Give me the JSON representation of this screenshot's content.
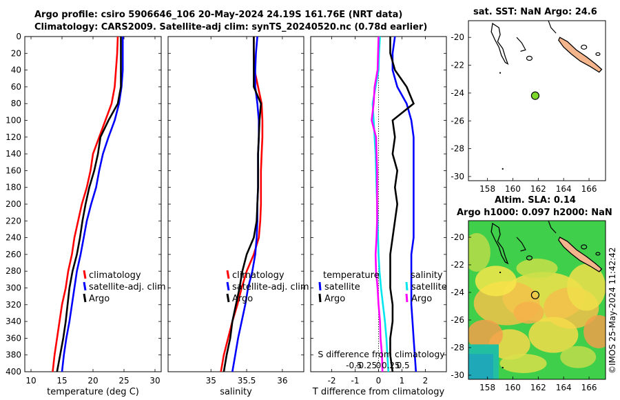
{
  "title": {
    "line1": "Argo profile: csiro 5906646_106 20-May-2024 24.19S 161.76E (NRT data)",
    "line2": "Climatology: CARS2009. Satellite-adj clim: synTS_20240520.nc (0.78d earlier)"
  },
  "footer": "©IMOS 25-May-2024 11:42:42",
  "colors": {
    "climatology": "#ff0000",
    "satellite": "#0000ff",
    "argo": "#000000",
    "t_sat": "#0000ff",
    "s_sat": "#00e5ee",
    "s_argo": "#ff00ff"
  },
  "chart_data": [
    {
      "type": "line",
      "xlabel": "temperature (deg C)",
      "ylabel": "",
      "xlim": [
        9,
        31
      ],
      "ylim": [
        400,
        0
      ],
      "xticks": [
        10,
        15,
        20,
        25,
        30
      ],
      "yticks": [
        0,
        20,
        40,
        60,
        80,
        100,
        120,
        140,
        160,
        180,
        200,
        220,
        240,
        260,
        280,
        300,
        320,
        340,
        360,
        380,
        400
      ],
      "legend": [
        "climatology",
        "satellite-adj. clim",
        "Argo"
      ],
      "series": [
        {
          "name": "climatology",
          "x": [
            24.0,
            23.9,
            23.7,
            23.5,
            23.0,
            22.0,
            21.0,
            20.0,
            19.6,
            19.0,
            18.2,
            17.6,
            17.0,
            16.6,
            16.0,
            15.6,
            15.0,
            14.6,
            14.2,
            13.8,
            13.5
          ],
          "y": [
            0,
            20,
            40,
            60,
            80,
            100,
            120,
            140,
            160,
            180,
            200,
            220,
            240,
            260,
            280,
            300,
            320,
            340,
            360,
            380,
            400
          ]
        },
        {
          "name": "satellite-adj. clim",
          "x": [
            24.8,
            24.8,
            24.8,
            24.6,
            24.2,
            23.5,
            22.5,
            21.6,
            21.0,
            20.5,
            19.7,
            19.0,
            18.5,
            18.0,
            17.4,
            17.0,
            16.6,
            16.2,
            15.7,
            15.3,
            15.0
          ],
          "y": [
            0,
            20,
            40,
            60,
            80,
            100,
            120,
            140,
            160,
            180,
            200,
            220,
            240,
            260,
            280,
            300,
            320,
            340,
            360,
            380,
            400
          ]
        },
        {
          "name": "Argo",
          "x": [
            24.5,
            24.5,
            24.5,
            24.5,
            24.0,
            22.5,
            21.2,
            20.8,
            20.2,
            19.4,
            18.8,
            18.3,
            17.9,
            17.4,
            16.7,
            16.2,
            15.9,
            15.6,
            15.2,
            14.7,
            14.2
          ],
          "y": [
            0,
            20,
            40,
            60,
            80,
            100,
            120,
            140,
            160,
            180,
            200,
            220,
            240,
            260,
            280,
            300,
            320,
            340,
            360,
            380,
            400
          ]
        }
      ]
    },
    {
      "type": "line",
      "xlabel": "salinity",
      "ylabel": "",
      "xlim": [
        34.4,
        36.3
      ],
      "ylim": [
        400,
        0
      ],
      "xticks": [
        35,
        35.5,
        36
      ],
      "legend": [
        "climatology",
        "satellite-adj. clim",
        "Argo"
      ],
      "series": [
        {
          "name": "climatology",
          "x": [
            35.6,
            35.6,
            35.61,
            35.66,
            35.71,
            35.72,
            35.72,
            35.71,
            35.7,
            35.7,
            35.7,
            35.69,
            35.67,
            35.6,
            35.5,
            35.43,
            35.37,
            35.3,
            35.24,
            35.18,
            35.14
          ],
          "y": [
            0,
            20,
            40,
            60,
            80,
            100,
            120,
            140,
            160,
            180,
            200,
            220,
            240,
            260,
            280,
            300,
            320,
            340,
            360,
            380,
            400
          ]
        },
        {
          "name": "satellite-adj. clim",
          "x": [
            35.65,
            35.63,
            35.62,
            35.62,
            35.65,
            35.67,
            35.67,
            35.66,
            35.66,
            35.66,
            35.65,
            35.65,
            35.64,
            35.62,
            35.58,
            35.52,
            35.48,
            35.43,
            35.38,
            35.34,
            35.3
          ],
          "y": [
            0,
            20,
            40,
            60,
            80,
            100,
            120,
            140,
            160,
            180,
            200,
            220,
            240,
            260,
            280,
            300,
            320,
            340,
            360,
            380,
            400
          ]
        },
        {
          "name": "Argo",
          "x": [
            35.6,
            35.6,
            35.6,
            35.6,
            35.7,
            35.68,
            35.67,
            35.66,
            35.66,
            35.66,
            35.65,
            35.64,
            35.6,
            35.5,
            35.44,
            35.4,
            35.35,
            35.3,
            35.27,
            35.22,
            35.18
          ],
          "y": [
            0,
            20,
            40,
            60,
            80,
            100,
            120,
            140,
            160,
            180,
            200,
            220,
            240,
            260,
            280,
            300,
            320,
            340,
            360,
            380,
            400
          ]
        }
      ]
    },
    {
      "type": "line",
      "xlabel": "T difference from climatology",
      "xlim": [
        -2.9,
        2.9
      ],
      "ylim": [
        400,
        0
      ],
      "xticks": [
        -2,
        -1,
        0,
        1,
        2
      ],
      "top_xlabel": "S difference from climatology",
      "top_xticks": [
        "-0.5",
        "-0.25",
        "0",
        "0.25",
        "0.5"
      ],
      "legend_left_title": "temperature",
      "legend_left": [
        "satellite",
        "Argo"
      ],
      "legend_right_title": "salinity",
      "legend_right": [
        "satellite",
        "Argo"
      ],
      "series": [
        {
          "name": "temperature satellite",
          "x": [
            0.7,
            0.6,
            0.6,
            0.8,
            1.2,
            1.4,
            1.5,
            1.5,
            1.5,
            1.5,
            1.5,
            1.5,
            1.5,
            1.4,
            1.4,
            1.4,
            1.4,
            1.45,
            1.5,
            1.55,
            1.6
          ],
          "y": [
            0,
            20,
            40,
            60,
            80,
            100,
            120,
            140,
            160,
            180,
            200,
            220,
            240,
            260,
            280,
            300,
            320,
            340,
            360,
            380,
            400
          ]
        },
        {
          "name": "temperature Argo",
          "x": [
            0.5,
            0.5,
            0.7,
            1.2,
            1.5,
            0.6,
            0.7,
            0.6,
            0.8,
            0.7,
            0.8,
            0.7,
            0.6,
            0.5,
            0.5,
            0.5,
            0.6,
            0.6,
            0.5,
            0.5,
            0.6
          ],
          "y": [
            0,
            20,
            40,
            60,
            80,
            100,
            120,
            140,
            160,
            180,
            200,
            220,
            240,
            260,
            280,
            300,
            320,
            340,
            360,
            380,
            400
          ]
        },
        {
          "name": "salinity satellite",
          "x": [
            0.03,
            0.01,
            0.0,
            -0.06,
            -0.12,
            -0.1,
            -0.08,
            -0.06,
            -0.05,
            -0.04,
            -0.03,
            -0.02,
            -0.01,
            0.0,
            0.02,
            0.05,
            0.09,
            0.13,
            0.16,
            0.18,
            0.2
          ],
          "y": [
            0,
            20,
            40,
            60,
            80,
            100,
            120,
            140,
            160,
            180,
            200,
            220,
            240,
            260,
            280,
            300,
            320,
            340,
            360,
            380,
            400
          ]
        },
        {
          "name": "salinity Argo",
          "x": [
            0.0,
            -0.01,
            -0.02,
            -0.08,
            -0.1,
            -0.14,
            -0.05,
            -0.04,
            -0.03,
            -0.03,
            -0.03,
            -0.03,
            -0.04,
            -0.06,
            -0.05,
            -0.02,
            0.0,
            0.03,
            0.04,
            0.07,
            0.08
          ],
          "y": [
            0,
            20,
            40,
            60,
            80,
            100,
            120,
            140,
            160,
            180,
            200,
            220,
            240,
            260,
            280,
            300,
            320,
            340,
            360,
            380,
            400
          ]
        }
      ]
    },
    {
      "type": "map",
      "title": "sat. SST: NaN Argo: 24.6",
      "xlim": [
        156.5,
        167.3
      ],
      "ylim": [
        -30.3,
        -18.8
      ],
      "xticks": [
        158,
        160,
        162,
        164,
        166
      ],
      "yticks": [
        -20,
        -22,
        -24,
        -26,
        -28,
        -30
      ],
      "marker": {
        "lon": 161.76,
        "lat": -24.19
      }
    },
    {
      "type": "heatmap",
      "title_line1": "Altim. SLA: 0.14",
      "title_line2": "Argo h1000: 0.097 h2000: NaN",
      "xlim": [
        156.5,
        167.3
      ],
      "ylim": [
        -30.3,
        -18.8
      ],
      "xticks": [
        158,
        160,
        162,
        164,
        166
      ],
      "yticks": [
        -20,
        -22,
        -24,
        -26,
        -28,
        -30
      ],
      "marker": {
        "lon": 161.76,
        "lat": -24.19
      }
    }
  ]
}
